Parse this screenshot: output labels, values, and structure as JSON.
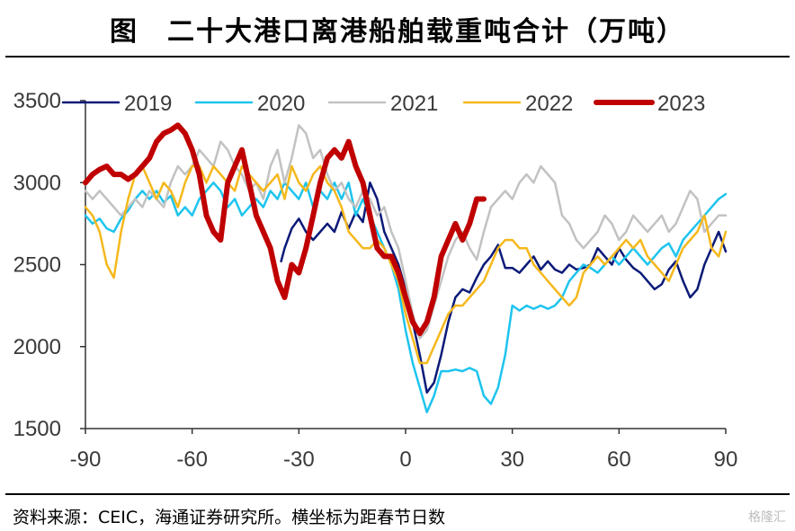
{
  "header": {
    "title": "图　二十大港口离港船舶载重吨合计（万吨）"
  },
  "footer": {
    "source": "资料来源：CEIC，海通证券研究所。横坐标为距春节日数",
    "watermark": "格隆汇"
  },
  "chart_data": {
    "type": "line",
    "title": "二十大港口离港船舶载重吨合计（万吨）",
    "xlabel": "",
    "ylabel": "",
    "xlim": [
      -90,
      90
    ],
    "ylim": [
      1500,
      3500
    ],
    "xticks": [
      -90,
      -60,
      -30,
      0,
      30,
      60,
      90
    ],
    "yticks": [
      1500,
      2000,
      2500,
      3000,
      3500
    ],
    "grid": false,
    "legend": "top",
    "series": [
      {
        "name": "2019",
        "color": "#0b1a78",
        "width": 2.5,
        "x": [
          -35,
          -34,
          -32,
          -30,
          -28,
          -26,
          -24,
          -22,
          -20,
          -18,
          -16,
          -14,
          -12,
          -10,
          -8,
          -6,
          -4,
          -2,
          0,
          2,
          4,
          6,
          8,
          10,
          12,
          14,
          16,
          18,
          20,
          22,
          24,
          26,
          28,
          30,
          32,
          34,
          36,
          38,
          40,
          42,
          44,
          46,
          48,
          50,
          52,
          54,
          56,
          58,
          60,
          62,
          64,
          66,
          68,
          70,
          72,
          74,
          76,
          78,
          80,
          82,
          84,
          86,
          88,
          90
        ],
        "y": [
          2520,
          2600,
          2720,
          2780,
          2700,
          2650,
          2700,
          2750,
          2700,
          2820,
          2720,
          2820,
          2760,
          3000,
          2900,
          2700,
          2600,
          2500,
          2350,
          2150,
          1950,
          1720,
          1780,
          1950,
          2150,
          2300,
          2350,
          2330,
          2420,
          2500,
          2550,
          2620,
          2480,
          2480,
          2450,
          2500,
          2550,
          2470,
          2520,
          2470,
          2450,
          2500,
          2470,
          2480,
          2500,
          2600,
          2550,
          2500,
          2600,
          2530,
          2480,
          2450,
          2400,
          2350,
          2380,
          2470,
          2520,
          2400,
          2300,
          2350,
          2500,
          2600,
          2700,
          2580
        ]
      },
      {
        "name": "2020",
        "color": "#1ec4ee",
        "width": 2.5,
        "x": [
          -90,
          -88,
          -86,
          -84,
          -82,
          -80,
          -78,
          -76,
          -74,
          -72,
          -70,
          -68,
          -66,
          -64,
          -62,
          -60,
          -58,
          -56,
          -54,
          -52,
          -50,
          -48,
          -46,
          -44,
          -42,
          -40,
          -38,
          -36,
          -34,
          -32,
          -30,
          -28,
          -26,
          -24,
          -22,
          -20,
          -18,
          -16,
          -14,
          -12,
          -10,
          -8,
          -6,
          -4,
          -2,
          0,
          2,
          4,
          6,
          8,
          10,
          12,
          14,
          16,
          18,
          20,
          22,
          24,
          26,
          28,
          30,
          32,
          34,
          36,
          38,
          40,
          42,
          44,
          46,
          48,
          50,
          52,
          54,
          56,
          58,
          60,
          62,
          64,
          66,
          68,
          70,
          72,
          74,
          76,
          78,
          80,
          82,
          84,
          86,
          88,
          90
        ],
        "y": [
          2800,
          2750,
          2780,
          2720,
          2700,
          2780,
          2830,
          2900,
          2950,
          2900,
          2950,
          2880,
          2920,
          2800,
          2850,
          2800,
          2900,
          2950,
          3000,
          2950,
          2850,
          2900,
          2800,
          2850,
          2900,
          2850,
          2950,
          2900,
          3000,
          2950,
          2900,
          3000,
          2850,
          2950,
          2900,
          3000,
          2900,
          3000,
          2800,
          2900,
          2800,
          2700,
          2600,
          2500,
          2350,
          2100,
          1900,
          1750,
          1600,
          1700,
          1850,
          1850,
          1860,
          1850,
          1870,
          1850,
          1700,
          1650,
          1750,
          1950,
          2250,
          2220,
          2250,
          2230,
          2250,
          2230,
          2250,
          2300,
          2400,
          2450,
          2500,
          2480,
          2450,
          2500,
          2550,
          2500,
          2550,
          2600,
          2550,
          2500,
          2550,
          2600,
          2630,
          2550,
          2650,
          2700,
          2750,
          2800,
          2850,
          2900,
          2930
        ]
      },
      {
        "name": "2021",
        "color": "#c2c2c2",
        "width": 2.5,
        "x": [
          -90,
          -88,
          -86,
          -84,
          -82,
          -80,
          -78,
          -76,
          -74,
          -72,
          -70,
          -68,
          -66,
          -64,
          -62,
          -60,
          -58,
          -56,
          -54,
          -52,
          -50,
          -48,
          -46,
          -44,
          -42,
          -40,
          -38,
          -36,
          -34,
          -32,
          -30,
          -28,
          -26,
          -24,
          -22,
          -20,
          -18,
          -16,
          -14,
          -12,
          -10,
          -8,
          -6,
          -4,
          -2,
          0,
          2,
          4,
          6,
          8,
          10,
          12,
          14,
          16,
          18,
          20,
          22,
          24,
          26,
          28,
          30,
          32,
          34,
          36,
          38,
          40,
          42,
          44,
          46,
          48,
          50,
          52,
          54,
          56,
          58,
          60,
          62,
          64,
          66,
          68,
          70,
          72,
          74,
          76,
          78,
          80,
          82,
          84,
          86,
          88,
          90
        ],
        "y": [
          2950,
          2900,
          2950,
          2900,
          2850,
          2800,
          2850,
          2900,
          2850,
          2950,
          2900,
          2850,
          3000,
          3100,
          3050,
          3100,
          3200,
          3150,
          3100,
          3250,
          3200,
          3100,
          3050,
          2950,
          3000,
          2900,
          3100,
          3200,
          3000,
          3150,
          3350,
          3300,
          3150,
          3200,
          3050,
          2950,
          3000,
          2900,
          2850,
          2950,
          2900,
          2800,
          2850,
          2700,
          2600,
          2400,
          2200,
          2050,
          2100,
          2250,
          2400,
          2550,
          2650,
          2700,
          2600,
          2530,
          2700,
          2850,
          2900,
          2950,
          2900,
          3000,
          3050,
          3000,
          3100,
          3050,
          3000,
          2800,
          2750,
          2650,
          2600,
          2650,
          2700,
          2800,
          2750,
          2650,
          2700,
          2800,
          2750,
          2700,
          2750,
          2800,
          2700,
          2750,
          2850,
          2950,
          2900,
          2700,
          2750,
          2800,
          2800
        ]
      },
      {
        "name": "2022",
        "color": "#f5b81c",
        "width": 2.5,
        "x": [
          -90,
          -88,
          -86,
          -84,
          -82,
          -80,
          -78,
          -76,
          -74,
          -72,
          -70,
          -68,
          -66,
          -64,
          -62,
          -60,
          -58,
          -56,
          -54,
          -52,
          -50,
          -48,
          -46,
          -44,
          -42,
          -40,
          -38,
          -36,
          -34,
          -32,
          -30,
          -28,
          -26,
          -24,
          -22,
          -20,
          -18,
          -16,
          -14,
          -12,
          -10,
          -8,
          -6,
          -4,
          -2,
          0,
          2,
          4,
          6,
          8,
          10,
          12,
          14,
          16,
          18,
          20,
          22,
          24,
          26,
          28,
          30,
          32,
          34,
          36,
          38,
          40,
          42,
          44,
          46,
          48,
          50,
          52,
          54,
          56,
          58,
          60,
          62,
          64,
          66,
          68,
          70,
          72,
          74,
          76,
          78,
          80,
          82,
          84,
          86,
          88,
          90
        ],
        "y": [
          2850,
          2800,
          2700,
          2500,
          2420,
          2700,
          2900,
          3050,
          3100,
          3000,
          2900,
          3000,
          2950,
          2850,
          3000,
          3100,
          3100,
          3000,
          3100,
          3050,
          3000,
          2950,
          3100,
          3050,
          3000,
          2950,
          3000,
          3050,
          2900,
          3100,
          3000,
          2950,
          3050,
          3100,
          3000,
          2950,
          2850,
          2700,
          2650,
          2600,
          2600,
          2650,
          2600,
          2500,
          2400,
          2200,
          2050,
          1900,
          1900,
          2000,
          2100,
          2200,
          2250,
          2250,
          2300,
          2350,
          2400,
          2500,
          2600,
          2650,
          2650,
          2600,
          2600,
          2500,
          2450,
          2400,
          2350,
          2300,
          2250,
          2300,
          2450,
          2500,
          2550,
          2500,
          2550,
          2600,
          2650,
          2600,
          2650,
          2550,
          2500,
          2450,
          2400,
          2500,
          2600,
          2650,
          2700,
          2800,
          2600,
          2550,
          2700
        ]
      },
      {
        "name": "2023",
        "color": "#c00000",
        "width": 6,
        "x": [
          -90,
          -88,
          -86,
          -84,
          -82,
          -80,
          -78,
          -76,
          -74,
          -72,
          -70,
          -68,
          -66,
          -64,
          -62,
          -60,
          -58,
          -56,
          -54,
          -52,
          -50,
          -48,
          -46,
          -44,
          -42,
          -40,
          -38,
          -36,
          -34,
          -32,
          -30,
          -28,
          -26,
          -24,
          -22,
          -20,
          -18,
          -16,
          -14,
          -12,
          -10,
          -8,
          -6,
          -4,
          -2,
          0,
          2,
          4,
          6,
          8,
          10,
          12,
          14,
          16,
          18,
          20,
          22
        ],
        "y": [
          3000,
          3050,
          3080,
          3100,
          3050,
          3050,
          3020,
          3050,
          3100,
          3150,
          3250,
          3300,
          3320,
          3350,
          3300,
          3200,
          3050,
          2800,
          2700,
          2650,
          3000,
          3100,
          3200,
          3000,
          2800,
          2700,
          2600,
          2400,
          2300,
          2500,
          2450,
          2600,
          2800,
          3000,
          3150,
          3200,
          3150,
          3250,
          3100,
          3000,
          2800,
          2600,
          2550,
          2550,
          2450,
          2300,
          2150,
          2080,
          2150,
          2300,
          2550,
          2650,
          2750,
          2650,
          2750,
          2900,
          2900
        ]
      }
    ]
  }
}
